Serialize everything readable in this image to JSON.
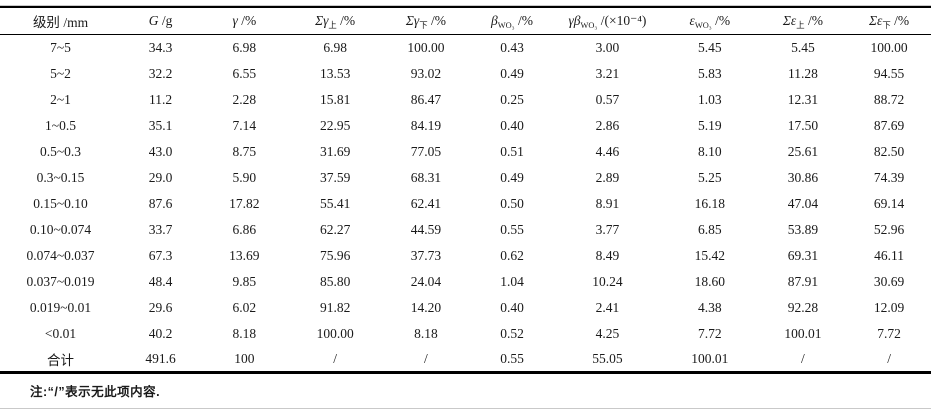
{
  "table": {
    "columns": [
      {
        "text": "级别",
        "unit": " /mm"
      },
      {
        "italic": "G",
        "unit": " /g"
      },
      {
        "italic": "γ",
        "unit": " /%"
      },
      {
        "italic": "Σγ",
        "sub": "上",
        "unit": " /%"
      },
      {
        "italic": "Σγ",
        "sub": "下",
        "unit": " /%"
      },
      {
        "italic": "β",
        "sub": "WO₃",
        "unit": " /%"
      },
      {
        "italic": "γβ",
        "sub": "WO₃",
        "unit": " /(×10⁻⁴)"
      },
      {
        "italic": "ε",
        "sub": "WO₃",
        "unit": " /%"
      },
      {
        "italic": "Σε",
        "sub": "上",
        "unit": " /%"
      },
      {
        "italic": "Σε",
        "sub": "下",
        "unit": " /%"
      }
    ],
    "rows": [
      [
        "7~5",
        "34.3",
        "6.98",
        "6.98",
        "100.00",
        "0.43",
        "3.00",
        "5.45",
        "5.45",
        "100.00"
      ],
      [
        "5~2",
        "32.2",
        "6.55",
        "13.53",
        "93.02",
        "0.49",
        "3.21",
        "5.83",
        "11.28",
        "94.55"
      ],
      [
        "2~1",
        "11.2",
        "2.28",
        "15.81",
        "86.47",
        "0.25",
        "0.57",
        "1.03",
        "12.31",
        "88.72"
      ],
      [
        "1~0.5",
        "35.1",
        "7.14",
        "22.95",
        "84.19",
        "0.40",
        "2.86",
        "5.19",
        "17.50",
        "87.69"
      ],
      [
        "0.5~0.3",
        "43.0",
        "8.75",
        "31.69",
        "77.05",
        "0.51",
        "4.46",
        "8.10",
        "25.61",
        "82.50"
      ],
      [
        "0.3~0.15",
        "29.0",
        "5.90",
        "37.59",
        "68.31",
        "0.49",
        "2.89",
        "5.25",
        "30.86",
        "74.39"
      ],
      [
        "0.15~0.10",
        "87.6",
        "17.82",
        "55.41",
        "62.41",
        "0.50",
        "8.91",
        "16.18",
        "47.04",
        "69.14"
      ],
      [
        "0.10~0.074",
        "33.7",
        "6.86",
        "62.27",
        "44.59",
        "0.55",
        "3.77",
        "6.85",
        "53.89",
        "52.96"
      ],
      [
        "0.074~0.037",
        "67.3",
        "13.69",
        "75.96",
        "37.73",
        "0.62",
        "8.49",
        "15.42",
        "69.31",
        "46.11"
      ],
      [
        "0.037~0.019",
        "48.4",
        "9.85",
        "85.80",
        "24.04",
        "1.04",
        "10.24",
        "18.60",
        "87.91",
        "30.69"
      ],
      [
        "0.019~0.01",
        "29.6",
        "6.02",
        "91.82",
        "14.20",
        "0.40",
        "2.41",
        "4.38",
        "92.28",
        "12.09"
      ],
      [
        "<0.01",
        "40.2",
        "8.18",
        "100.00",
        "8.18",
        "0.52",
        "4.25",
        "7.72",
        "100.01",
        "7.72"
      ]
    ],
    "total_row": [
      "合计",
      "491.6",
      "100",
      "/",
      "/",
      "0.55",
      "55.05",
      "100.01",
      "/",
      "/"
    ]
  },
  "note": {
    "text": "注:“/”表示无此项内容."
  }
}
